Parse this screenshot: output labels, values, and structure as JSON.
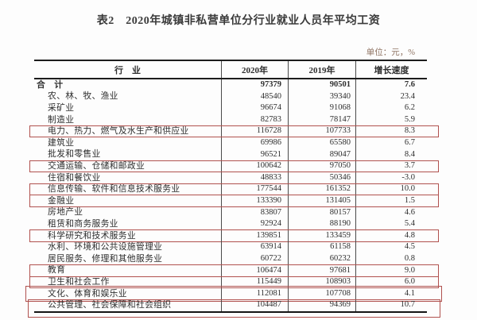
{
  "title": "表2　2020年城镇非私营单位分行业就业人员年平均工资",
  "unit_label": "单位：元，%",
  "colors": {
    "highlight_border": "#b0514e",
    "unit_text": "#8d7160"
  },
  "table": {
    "columns": [
      "行　业",
      "2020年",
      "2019年",
      "增长速度"
    ],
    "rows": [
      {
        "industry": "合　计",
        "y2020": "97379",
        "y2019": "90501",
        "growth": "7.6",
        "bold": true,
        "indent": false,
        "highlighted": false
      },
      {
        "industry": "农、林、牧、渔业",
        "y2020": "48540",
        "y2019": "39340",
        "growth": "23.4",
        "bold": false,
        "indent": true,
        "highlighted": false
      },
      {
        "industry": "采矿业",
        "y2020": "96674",
        "y2019": "91068",
        "growth": "6.2",
        "bold": false,
        "indent": true,
        "highlighted": false
      },
      {
        "industry": "制造业",
        "y2020": "82783",
        "y2019": "78147",
        "growth": "5.9",
        "bold": false,
        "indent": true,
        "highlighted": false
      },
      {
        "industry": "电力、热力、燃气及水生产和供应业",
        "y2020": "116728",
        "y2019": "107733",
        "growth": "8.3",
        "bold": false,
        "indent": true,
        "highlighted": true
      },
      {
        "industry": "建筑业",
        "y2020": "69986",
        "y2019": "65580",
        "growth": "6.7",
        "bold": false,
        "indent": true,
        "highlighted": false
      },
      {
        "industry": "批发和零售业",
        "y2020": "96521",
        "y2019": "89047",
        "growth": "8.4",
        "bold": false,
        "indent": true,
        "highlighted": false
      },
      {
        "industry": "交通运输、仓储和邮政业",
        "y2020": "100642",
        "y2019": "97050",
        "growth": "3.7",
        "bold": false,
        "indent": true,
        "highlighted": true
      },
      {
        "industry": "住宿和餐饮业",
        "y2020": "48833",
        "y2019": "50346",
        "growth": "-3.0",
        "bold": false,
        "indent": true,
        "highlighted": false
      },
      {
        "industry": "信息传输、软件和信息技术服务业",
        "y2020": "177544",
        "y2019": "161352",
        "growth": "10.0",
        "bold": false,
        "indent": true,
        "highlighted": true
      },
      {
        "industry": "金融业",
        "y2020": "133390",
        "y2019": "131405",
        "growth": "1.5",
        "bold": false,
        "indent": true,
        "highlighted": true
      },
      {
        "industry": "房地产业",
        "y2020": "83807",
        "y2019": "80157",
        "growth": "4.6",
        "bold": false,
        "indent": true,
        "highlighted": false
      },
      {
        "industry": "租赁和商务服务业",
        "y2020": "92924",
        "y2019": "88190",
        "growth": "5.4",
        "bold": false,
        "indent": true,
        "highlighted": false
      },
      {
        "industry": "科学研究和技术服务业",
        "y2020": "139851",
        "y2019": "133459",
        "growth": "4.8",
        "bold": false,
        "indent": true,
        "highlighted": true
      },
      {
        "industry": "水利、环境和公共设施管理业",
        "y2020": "63914",
        "y2019": "61158",
        "growth": "4.5",
        "bold": false,
        "indent": true,
        "highlighted": false
      },
      {
        "industry": "居民服务、修理和其他服务业",
        "y2020": "60722",
        "y2019": "60232",
        "growth": "0.8",
        "bold": false,
        "indent": true,
        "highlighted": false
      },
      {
        "industry": "教育",
        "y2020": "106474",
        "y2019": "97681",
        "growth": "9.0",
        "bold": false,
        "indent": true,
        "highlighted": true
      },
      {
        "industry": "卫生和社会工作",
        "y2020": "115449",
        "y2019": "108903",
        "growth": "6.0",
        "bold": false,
        "indent": true,
        "highlighted": true
      },
      {
        "industry": "文化、体育和娱乐业",
        "y2020": "112081",
        "y2019": "107708",
        "growth": "4.1",
        "bold": false,
        "indent": true,
        "highlighted": true
      },
      {
        "industry": "公共管理、社会保障和社会组织",
        "y2020": "104487",
        "y2019": "94369",
        "growth": "10.7",
        "bold": false,
        "indent": true,
        "highlighted": true
      }
    ]
  }
}
